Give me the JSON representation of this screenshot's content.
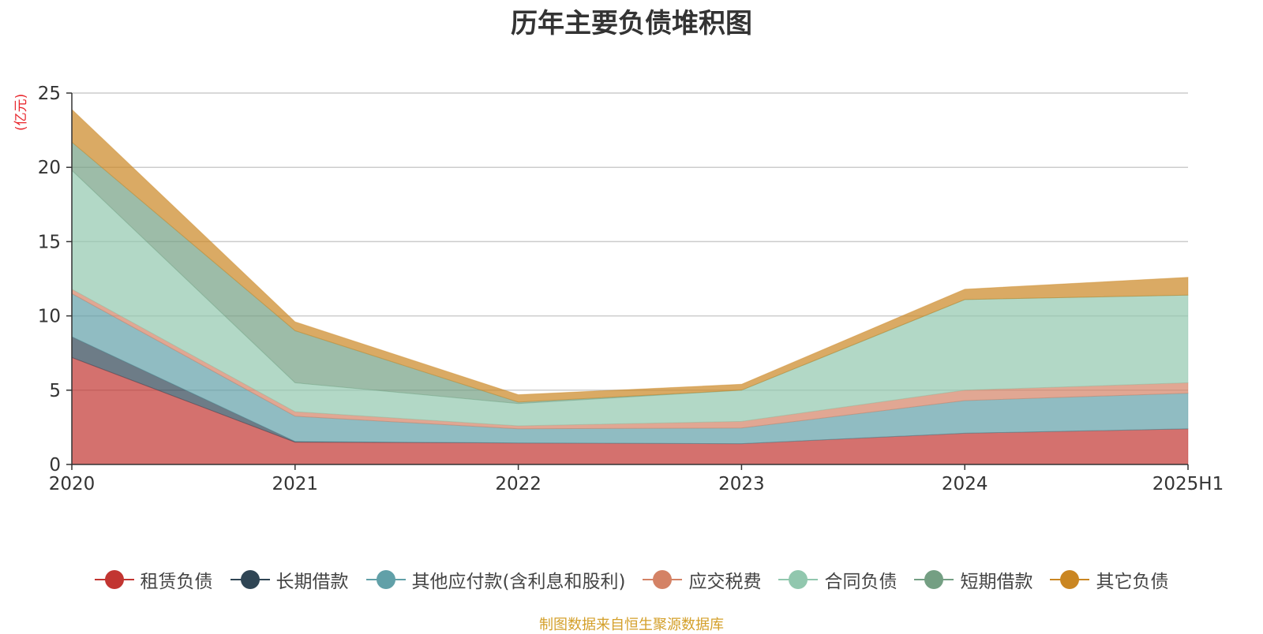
{
  "chart_data": {
    "type": "area",
    "title": "历年主要负债堆积图",
    "ylabel": "(亿元)",
    "xlabel": "",
    "categories": [
      "2020",
      "2021",
      "2022",
      "2023",
      "2024",
      "2025H1"
    ],
    "ylim": [
      0,
      25
    ],
    "yticks": [
      0,
      5,
      10,
      15,
      20,
      25
    ],
    "grid": true,
    "stacked": true,
    "legend_position": "bottom",
    "series": [
      {
        "name": "租赁负债",
        "color": "#c23531",
        "values": [
          7.2,
          1.5,
          1.45,
          1.4,
          2.1,
          2.4
        ]
      },
      {
        "name": "长期借款",
        "color": "#2f4554",
        "values": [
          1.4,
          0.05,
          0,
          0,
          0,
          0
        ]
      },
      {
        "name": "其他应付款(含利息和股利)",
        "color": "#61a0a8",
        "values": [
          2.9,
          1.7,
          0.95,
          1.05,
          2.2,
          2.4
        ]
      },
      {
        "name": "应交税费",
        "color": "#d48265",
        "values": [
          0.3,
          0.3,
          0.2,
          0.45,
          0.7,
          0.7
        ]
      },
      {
        "name": "合同负债",
        "color": "#91c7ae",
        "values": [
          8.0,
          1.95,
          1.5,
          2.1,
          6.1,
          5.9
        ]
      },
      {
        "name": "短期借款",
        "color": "#749f83",
        "values": [
          1.9,
          3.5,
          0.1,
          0,
          0,
          0
        ]
      },
      {
        "name": "其它负债",
        "color": "#ca8622",
        "values": [
          2.2,
          0.6,
          0.5,
          0.4,
          0.7,
          1.2
        ]
      }
    ]
  },
  "source_text": "制图数据来自恒生聚源数据库"
}
